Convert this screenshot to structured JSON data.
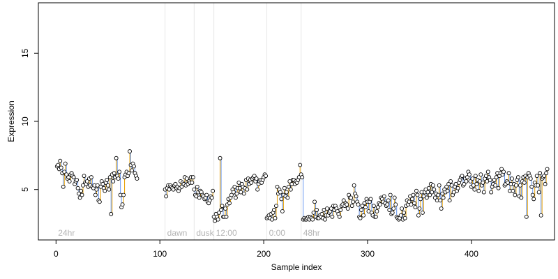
{
  "chart_data": {
    "type": "scatter",
    "xlabel": "Sample index",
    "ylabel": "Expression",
    "xlim": [
      -17,
      480
    ],
    "ylim": [
      1.3,
      18.7
    ],
    "x_ticks": [
      0,
      100,
      200,
      300,
      400
    ],
    "y_ticks": [
      5,
      10,
      15
    ],
    "grid": false,
    "legend": "none",
    "colors": {
      "increase": "#e69f00",
      "decrease": "#6495ed",
      "point_fill": "#ffffff",
      "point_stroke": "#000000",
      "region_line": "#e6e6e6",
      "region_text": "#b4b4b4"
    },
    "regions": [
      {
        "start": 0,
        "label": "24hr"
      },
      {
        "start": 105,
        "label": "dawn"
      },
      {
        "start": 133,
        "label": "dusk"
      },
      {
        "start": 152,
        "label": "12:00"
      },
      {
        "start": 203,
        "label": "0:00"
      },
      {
        "start": 236,
        "label": "48hr"
      }
    ],
    "segments": [
      {
        "start": 1,
        "values": [
          6.7,
          6.8,
          6.5,
          7.1,
          6.6,
          6.2,
          5.2,
          6.3,
          6.9,
          6.1,
          5.8,
          5.9,
          5.6,
          6.1,
          6.2,
          6.0,
          5.9,
          5.4,
          5.6,
          5.7,
          5.1,
          4.7,
          4.4,
          4.9,
          4.6,
          5.3,
          6.0,
          5.5,
          5.4,
          5.6,
          5.2,
          5.8,
          5.3,
          5.9,
          5.2,
          5.1,
          5.3,
          4.6,
          5.0,
          5.3,
          4.2,
          4.1,
          5.2,
          5.6,
          5.4,
          5.1,
          4.9,
          5.5,
          5.7,
          5.3,
          5.0,
          5.9,
          3.2,
          6.1,
          5.6,
          6.2,
          5.9,
          7.3,
          6.0,
          5.8,
          6.3,
          4.6,
          3.7,
          3.9,
          4.6,
          5.9,
          6.1,
          6.3,
          6.0,
          6.2,
          7.8,
          6.8,
          6.4,
          6.9,
          6.7,
          6.2,
          6.0,
          5.8
        ]
      },
      {
        "start": 105,
        "values": [
          5.0,
          4.5,
          5.1,
          5.3,
          5.0,
          5.3,
          5.2,
          5.1,
          5.0,
          5.3,
          5.4,
          5.1,
          5.2,
          4.9,
          5.1,
          5.6,
          5.2,
          5.5,
          5.4,
          5.9,
          5.3,
          5.8,
          5.4,
          5.6,
          5.5,
          5.9,
          5.5,
          5.9
        ]
      },
      {
        "start": 133,
        "values": [
          5.0,
          4.6,
          4.5,
          5.2,
          4.8,
          4.4,
          4.9,
          4.8,
          4.6,
          4.5,
          4.3,
          4.4,
          4.6,
          4.1,
          4.0,
          4.2,
          4.5,
          4.4,
          4.9
        ]
      },
      {
        "start": 152,
        "values": [
          3.0,
          2.7,
          3.2,
          3.0,
          2.8,
          3.3,
          7.3,
          3.5,
          3.8,
          3.0,
          3.0,
          3.6,
          3.0,
          3.9,
          4.3,
          4.0,
          4.4,
          4.6,
          5.0,
          4.8,
          5.2,
          4.4,
          4.7,
          5.1,
          5.5,
          5.1,
          4.8,
          5.4,
          5.2,
          4.7,
          5.1,
          5.7,
          5.0,
          5.8,
          5.4,
          5.7,
          5.5,
          5.8,
          5.9,
          6.0,
          5.6,
          5.8,
          5.0,
          5.4,
          5.6,
          5.7,
          5.5,
          5.7,
          5.9,
          6.1,
          6.0
        ]
      },
      {
        "start": 203,
        "values": [
          2.9,
          3.0,
          3.1,
          2.9,
          3.2,
          2.8,
          3.3,
          3.5,
          2.9,
          3.8,
          5.2,
          4.7,
          5.0,
          4.8,
          4.3,
          3.4,
          4.6,
          5.1,
          4.5,
          4.8,
          4.4,
          5.2,
          5.6,
          5.0,
          5.4,
          5.7,
          5.7,
          5.4,
          5.6,
          5.5,
          5.7,
          5.9,
          6.8
        ]
      },
      {
        "start": 236,
        "values": [
          6.1,
          5.9,
          2.8,
          2.9,
          2.8,
          2.8,
          2.9,
          3.0,
          2.8,
          3.0,
          2.9,
          2.8,
          3.3,
          4.1,
          3.0,
          3.5,
          2.9,
          2.9,
          3.1,
          3.0,
          3.2,
          2.9,
          3.5,
          2.8,
          3.1,
          3.6,
          3.1,
          3.3,
          3.4,
          3.6,
          3.0,
          3.8,
          3.5,
          3.8,
          3.6,
          3.4,
          3.2,
          3.0,
          3.5,
          3.8,
          3.9,
          4.2,
          3.8,
          4.0,
          3.9,
          3.6,
          4.6,
          4.4,
          4.4,
          3.8,
          4.1,
          5.3,
          4.7,
          4.5,
          4.1,
          3.9,
          3.0,
          2.9,
          3.5,
          3.8,
          3.1,
          4.0,
          3.7,
          4.3,
          4.1,
          3.4,
          4.1,
          4.3,
          3.3,
          3.1,
          3.8,
          3.0,
          3.0,
          3.4,
          3.7,
          4.0,
          3.9,
          4.4,
          4.3,
          4.1,
          4.5,
          4.0,
          3.8,
          3.9,
          4.2,
          3.5,
          4.6,
          3.2,
          3.3,
          3.6,
          4.4,
          3.9,
          3.0,
          2.9,
          2.8,
          2.9,
          3.1,
          3.6,
          2.8,
          3.3,
          2.9,
          3.8,
          4.2,
          3.9,
          4.1,
          4.5,
          3.9,
          4.3,
          4.6,
          4.0,
          3.7,
          4.9,
          4.6,
          3.1,
          3.6,
          4.3,
          4.8,
          3.3,
          4.5,
          4.8,
          5.0,
          4.4,
          4.8,
          5.1,
          4.6,
          5.4,
          4.8,
          5.3,
          5.0,
          4.4,
          4.7,
          4.2,
          4.6,
          5.3,
          4.2,
          3.6,
          4.7,
          4.4,
          5.0,
          4.8,
          5.2,
          4.9,
          5.4,
          4.2,
          5.6,
          5.3,
          4.6,
          4.8,
          5.2,
          5.4,
          4.9,
          5.1,
          5.5,
          5.7,
          5.9,
          6.0,
          5.3,
          5.4,
          5.8,
          5.6,
          5.9,
          6.3,
          6.1,
          5.6,
          5.2,
          5.8,
          5.3,
          5.0,
          6.0,
          5.4,
          5.7,
          4.9,
          5.6,
          6.1,
          5.3,
          5.5,
          4.8,
          5.8,
          6.0,
          5.6,
          6.3,
          5.9,
          5.7,
          4.8,
          5.2,
          5.4,
          5.7,
          5.3,
          5.9,
          6.2,
          5.1,
          6.0,
          6.2,
          6.5,
          6.1,
          6.3,
          5.3,
          5.4,
          5.6,
          5.5,
          6.2,
          4.9,
          5.4,
          5.8,
          4.9,
          5.4,
          4.6,
          5.3,
          5.7,
          5.9,
          4.5,
          5.3,
          4.4,
          5.6,
          5.9,
          5.5,
          6.0,
          3.0,
          5.9,
          6.2,
          6.0,
          5.8,
          5.2,
          4.6,
          4.3,
          5.5,
          5.3,
          6.0,
          5.3,
          4.8,
          6.2,
          3.1,
          5.8,
          5.9,
          6.0,
          5.4,
          6.2,
          6.5
        ]
      }
    ]
  }
}
